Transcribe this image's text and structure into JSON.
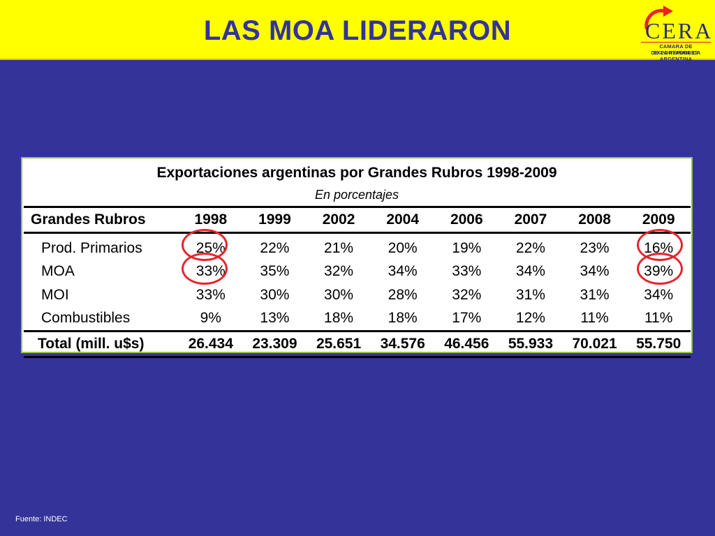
{
  "header": {
    "title": "LAS MOA LIDERARON",
    "logo": {
      "brand": "CERA",
      "line1": "CAMARA DE EXPORTADORES",
      "line2": "DE LA REPUBLICA ARGENTINA"
    }
  },
  "table": {
    "title": "Exportaciones argentinas por Grandes Rubros 1998-2009",
    "subtitle": "En porcentajes",
    "columns": [
      "Grandes Rubros",
      "1998",
      "1999",
      "2002",
      "2004",
      "2006",
      "2007",
      "2008",
      "2009"
    ],
    "rows": [
      {
        "label": "Prod. Primarios",
        "values": [
          "25%",
          "22%",
          "21%",
          "20%",
          "19%",
          "22%",
          "23%",
          "16%"
        ]
      },
      {
        "label": "MOA",
        "values": [
          "33%",
          "35%",
          "32%",
          "34%",
          "33%",
          "34%",
          "34%",
          "39%"
        ]
      },
      {
        "label": "MOI",
        "values": [
          "33%",
          "30%",
          "30%",
          "28%",
          "32%",
          "31%",
          "31%",
          "34%"
        ]
      },
      {
        "label": "Combustibles",
        "values": [
          "9%",
          "13%",
          "18%",
          "18%",
          "17%",
          "12%",
          "11%",
          "11%"
        ]
      }
    ],
    "total": {
      "label": "Total (mill. u$s)",
      "values": [
        "26.434",
        "23.309",
        "25.651",
        "34.576",
        "46.456",
        "55.933",
        "70.021",
        "55.750"
      ]
    }
  },
  "colors": {
    "background": "#343399",
    "header": "#ffff00",
    "title": "#333399",
    "highlight_ring": "#e8232a",
    "panel_border": "#9ac43c"
  },
  "highlights": [
    "1998 column (Prod. Primarios, MOA)",
    "2009 column (Prod. Primarios, MOA)"
  ],
  "footer": {
    "source": "Fuente: INDEC"
  }
}
